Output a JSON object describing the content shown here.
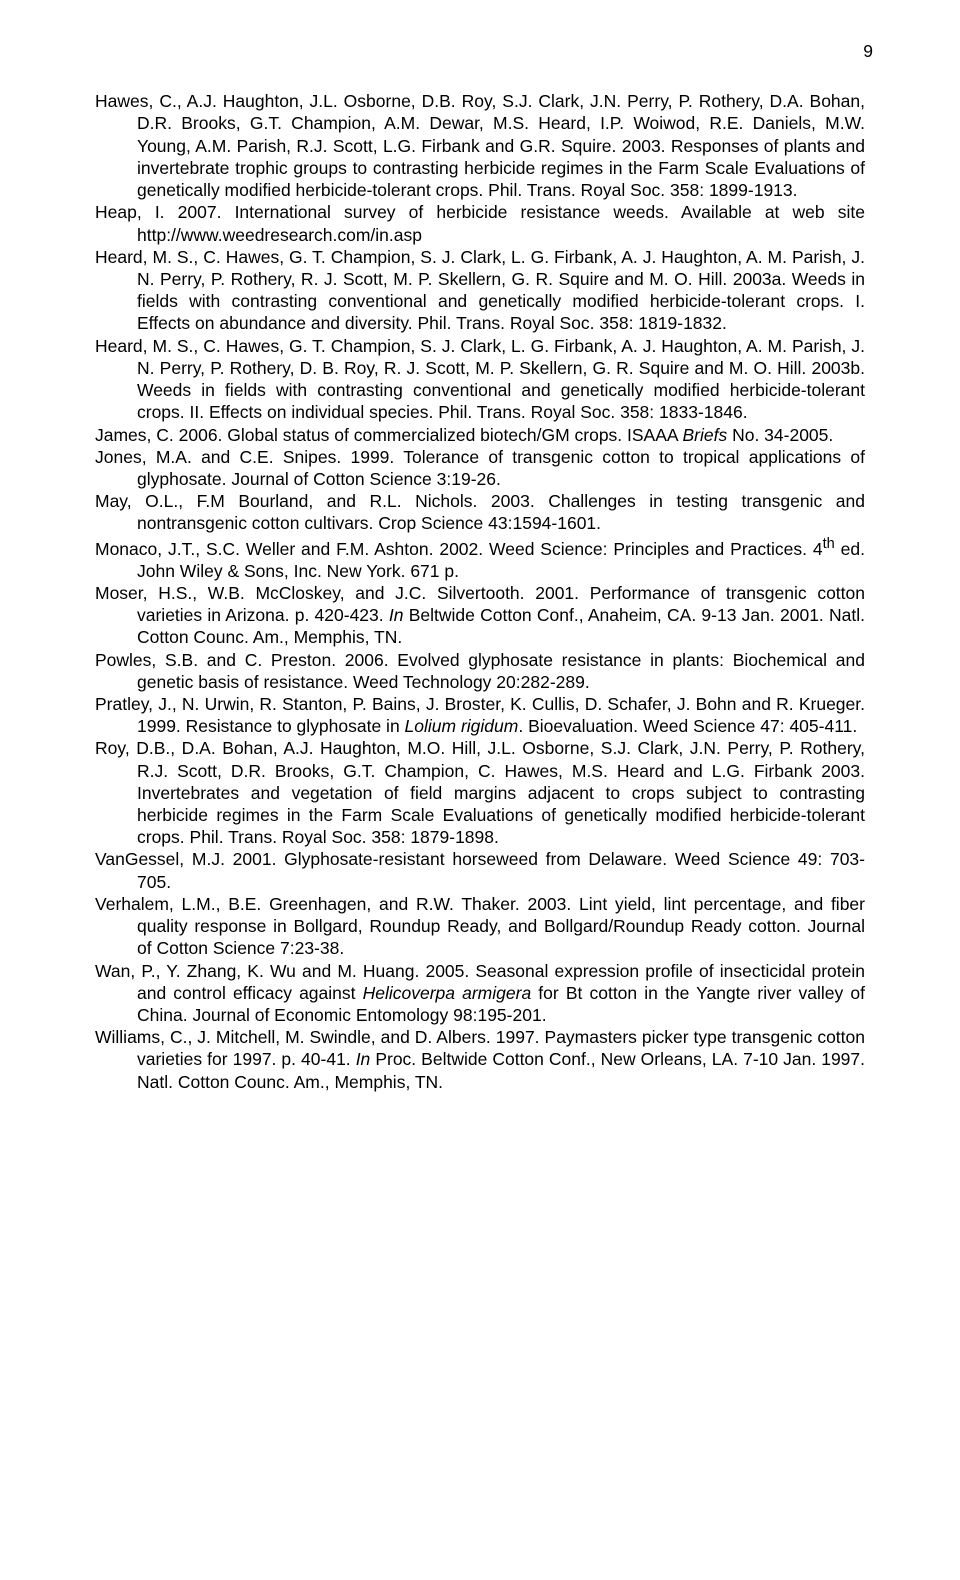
{
  "pageNumber": "9",
  "references": [
    {
      "html": "Hawes, C., A.J. Haughton, J.L. Osborne, D.B. Roy, S.J. Clark, J.N. Perry, P. Rothery, D.A. Bohan, D.R. Brooks, G.T. Champion, A.M. Dewar, M.S. Heard, I.P. Woiwod, R.E. Daniels, M.W. Young, A.M. Parish, R.J. Scott, L.G. Firbank and G.R. Squire. 2003. Responses of plants and invertebrate trophic groups to contrasting herbicide regimes in the Farm Scale Evaluations of genetically modified herbicide-tolerant crops. Phil. Trans. Royal Soc. 358: 1899-1913."
    },
    {
      "html": "Heap, I. 2007. International survey of herbicide resistance weeds. Available at web site http://www.weedresearch.com/in.asp"
    },
    {
      "html": "Heard, M. S., C. Hawes, G. T. Champion, S. J. Clark, L. G. Firbank, A. J. Haughton, A. M. Parish, J. N. Perry, P. Rothery, R. J. Scott, M. P. Skellern, G. R. Squire and M. O. Hill. 2003a. Weeds in fields with contrasting conventional and genetically modified herbicide-tolerant crops. I. Effects on abundance and diversity. Phil. Trans. Royal Soc. 358: 1819-1832."
    },
    {
      "html": "Heard, M. S., C. Hawes, G. T. Champion, S. J. Clark, L. G. Firbank, A. J. Haughton, A. M. Parish, J. N. Perry, P. Rothery, D. B. Roy, R. J. Scott, M. P. Skellern, G. R. Squire and M. O. Hill. 2003b.  Weeds in fields with contrasting conventional and genetically modified herbicide-tolerant crops. II. Effects on individual species. Phil. Trans. Royal Soc. 358: 1833-1846."
    },
    {
      "html": "James, C. 2006. Global status of commercialized biotech/GM crops. ISAAA <span class=\"italic\">Briefs</span> No. 34-2005."
    },
    {
      "html": "Jones, M.A. and C.E. Snipes. 1999. Tolerance of transgenic cotton to tropical applications of glyphosate. Journal of Cotton Science 3:19-26."
    },
    {
      "html": "May, O.L., F.M Bourland, and R.L. Nichols. 2003. Challenges in testing transgenic and nontransgenic cotton cultivars. Crop Science 43:1594-1601."
    },
    {
      "html": "Monaco, J.T., S.C. Weller and F.M. Ashton. 2002. Weed Science: Principles and Practices. 4<sup>th</sup> ed. John Wiley &amp; Sons, Inc. New York. 671 p."
    },
    {
      "html": "Moser, H.S., W.B. McCloskey, and J.C. Silvertooth. 2001. Performance of transgenic cotton varieties in Arizona. p. 420-423. <span class=\"italic\">In</span> Beltwide Cotton Conf., Anaheim, CA. 9-13 Jan. 2001. Natl. Cotton Counc. Am., Memphis, TN."
    },
    {
      "html": "Powles, S.B. and C. Preston. 2006. Evolved glyphosate resistance in plants: Biochemical and genetic basis of resistance. Weed Technology 20:282-289."
    },
    {
      "html": "Pratley, J., N. Urwin, R. Stanton, P. Bains, J. Broster, K. Cullis, D. Schafer, J. Bohn and R. Krueger. 1999. Resistance to glyphosate in <span class=\"italic\">Lolium rigidum</span>. Bioevaluation. Weed Science 47: 405-411."
    },
    {
      "html": "Roy, D.B., D.A. Bohan, A.J. Haughton, M.O. Hill, J.L. Osborne, S.J. Clark, J.N. Perry, P. Rothery, R.J. Scott, D.R. Brooks, G.T. Champion, C. Hawes, M.S. Heard and L.G.  Firbank 2003. Invertebrates and vegetation of field margins adjacent to crops subject to contrasting herbicide regimes in the Farm Scale Evaluations of genetically modified herbicide-tolerant crops. Phil. Trans. Royal Soc. 358: 1879-1898."
    },
    {
      "html": "VanGessel, M.J. 2001. Glyphosate-resistant horseweed from Delaware. Weed Science 49: 703-705."
    },
    {
      "html": "Verhalem, L.M., B.E. Greenhagen, and R.W. Thaker. 2003. Lint yield, lint percentage, and fiber quality response in Bollgard, Roundup Ready, and Bollgard/Roundup Ready cotton. Journal of Cotton Science 7:23-38."
    },
    {
      "html": "Wan, P., Y. Zhang, K. Wu and M. Huang. 2005. Seasonal expression profile of insecticidal protein and control efficacy against <span class=\"italic\">Helicoverpa armigera</span> for Bt cotton in the Yangte river valley of China. Journal of Economic Entomology 98:195-201."
    },
    {
      "html": "Williams, C., J. Mitchell, M. Swindle, and D. Albers. 1997. Paymasters picker type transgenic cotton varieties for 1997. p. 40-41. <span class=\"italic\">In</span> Proc. Beltwide Cotton Conf., New Orleans, LA. 7-10 Jan. 1997. Natl. Cotton Counc. Am., Memphis, TN."
    }
  ]
}
